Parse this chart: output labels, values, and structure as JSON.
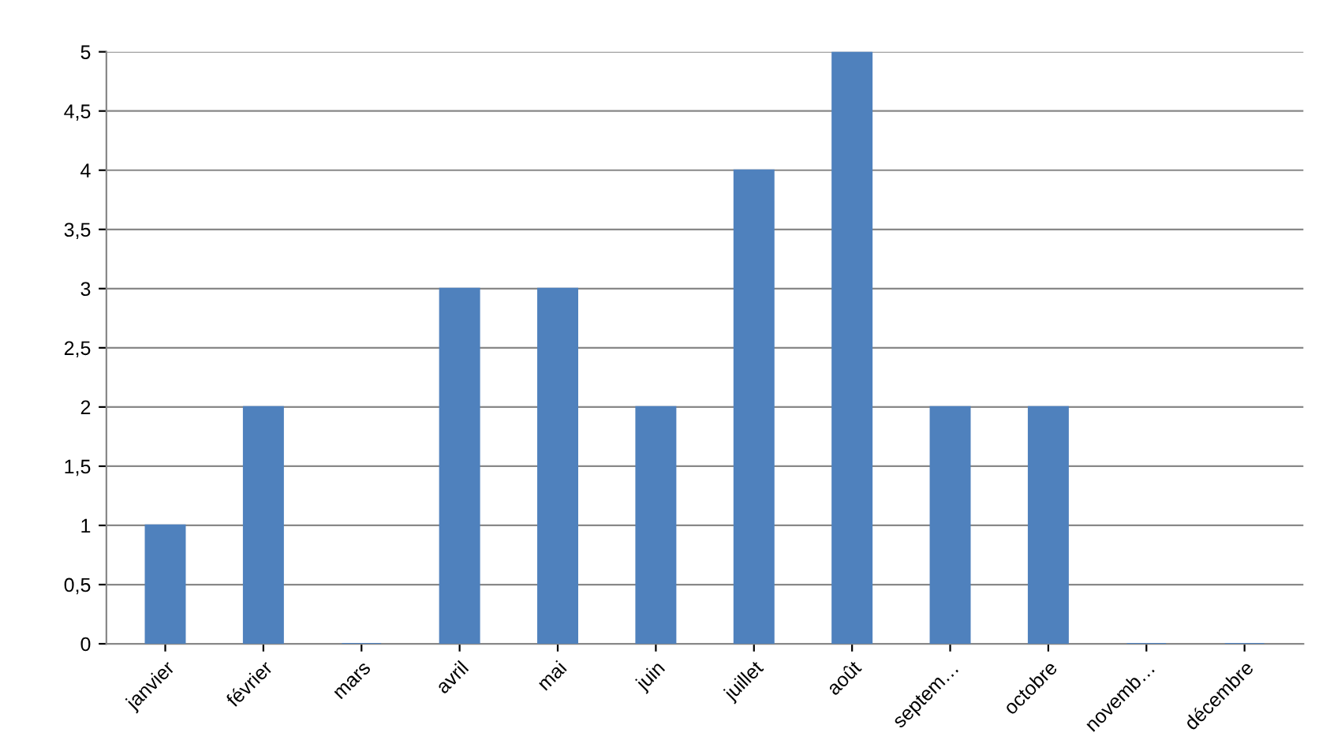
{
  "chart_data": {
    "type": "bar",
    "categories": [
      "janvier",
      "février",
      "mars",
      "avril",
      "mai",
      "juin",
      "juillet",
      "août",
      "septem…",
      "octobre",
      "novemb…",
      "décembre"
    ],
    "values": [
      1,
      2,
      0,
      3,
      3,
      2,
      4,
      5,
      2,
      2,
      0,
      0
    ],
    "color": "#4f81bd",
    "ylim": [
      0,
      5
    ],
    "yticks": [
      0,
      {
        "value": 0.5,
        "label": "0,5"
      },
      1,
      {
        "value": 1.5,
        "label": "1,5"
      },
      2,
      {
        "value": 2.5,
        "label": "2,5"
      },
      3,
      {
        "value": 3.5,
        "label": "3,5"
      },
      4,
      {
        "value": 4.5,
        "label": "4,5"
      },
      5
    ],
    "grid": "y",
    "legend": false
  }
}
